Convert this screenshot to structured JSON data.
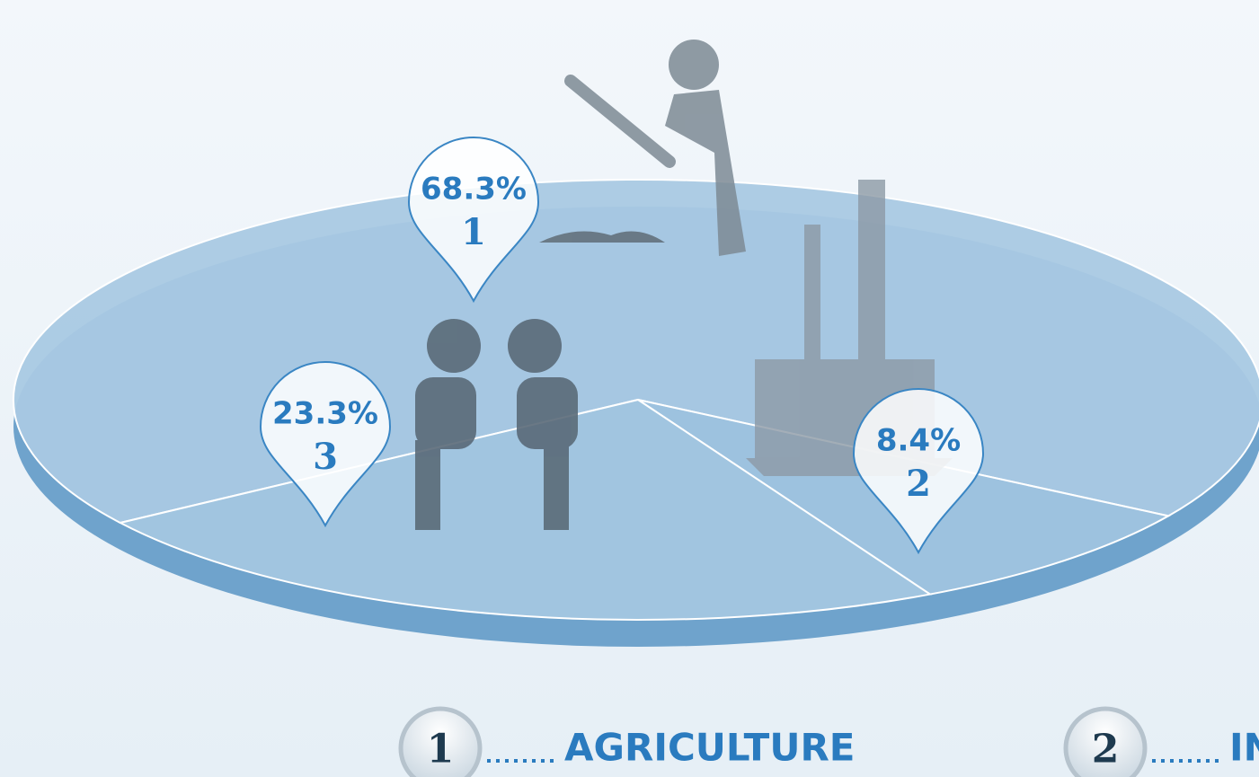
{
  "chart_data": {
    "type": "pie",
    "values": [
      68.3,
      8.4,
      23.3
    ],
    "value_labels": [
      "68.3%",
      "8.4%",
      "23.3%"
    ],
    "markers": [
      "1",
      "2",
      "3"
    ],
    "categories": [
      "AGRICULTURE",
      "IN",
      null
    ],
    "color": "#a9c9e3"
  }
}
